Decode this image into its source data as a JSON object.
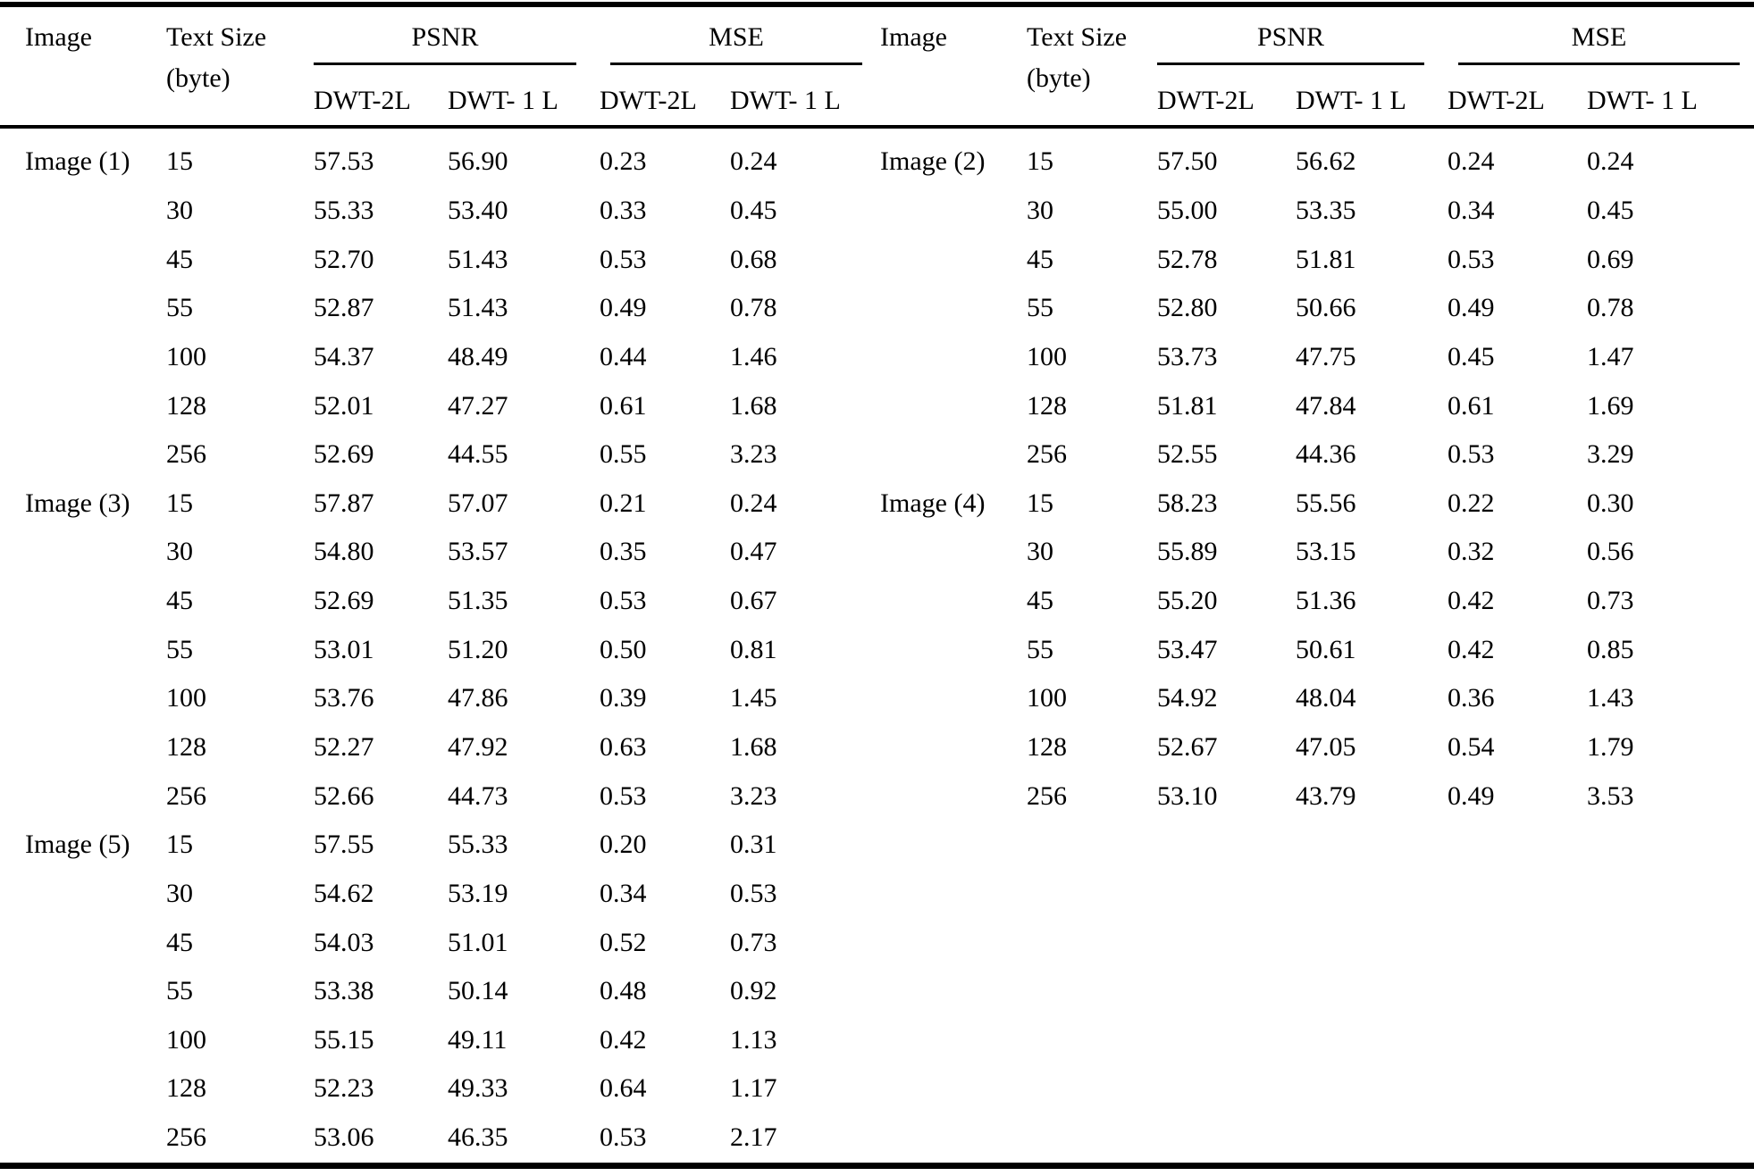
{
  "header": {
    "image": "Image",
    "text_size_line1": "Text Size",
    "text_size_line2": "(byte)",
    "psnr": "PSNR",
    "mse": "MSE",
    "dwt2l": "DWT-2L",
    "dwt1l": "DWT- 1 L"
  },
  "table": {
    "columns": [
      "Image",
      "Text Size (byte)",
      "PSNR DWT-2L",
      "PSNR DWT-1L",
      "MSE DWT-2L",
      "MSE DWT-1L"
    ],
    "sections": [
      {
        "groups": [
          {
            "image": "Image (1)",
            "rows": [
              [
                "15",
                "57.53",
                "56.90",
                "0.23",
                "0.24"
              ],
              [
                "30",
                "55.33",
                "53.40",
                "0.33",
                "0.45"
              ],
              [
                "45",
                "52.70",
                "51.43",
                "0.53",
                "0.68"
              ],
              [
                "55",
                "52.87",
                "51.43",
                "0.49",
                "0.78"
              ],
              [
                "100",
                "54.37",
                "48.49",
                "0.44",
                "1.46"
              ],
              [
                "128",
                "52.01",
                "47.27",
                "0.61",
                "1.68"
              ],
              [
                "256",
                "52.69",
                "44.55",
                "0.55",
                "3.23"
              ]
            ]
          },
          {
            "image": "Image (3)",
            "rows": [
              [
                "15",
                "57.87",
                "57.07",
                "0.21",
                "0.24"
              ],
              [
                "30",
                "54.80",
                "53.57",
                "0.35",
                "0.47"
              ],
              [
                "45",
                "52.69",
                "51.35",
                "0.53",
                "0.67"
              ],
              [
                "55",
                "53.01",
                "51.20",
                "0.50",
                "0.81"
              ],
              [
                "100",
                "53.76",
                "47.86",
                "0.39",
                "1.45"
              ],
              [
                "128",
                "52.27",
                "47.92",
                "0.63",
                "1.68"
              ],
              [
                "256",
                "52.66",
                "44.73",
                "0.53",
                "3.23"
              ]
            ]
          },
          {
            "image": "Image (5)",
            "rows": [
              [
                "15",
                "57.55",
                "55.33",
                "0.20",
                "0.31"
              ],
              [
                "30",
                "54.62",
                "53.19",
                "0.34",
                "0.53"
              ],
              [
                "45",
                "54.03",
                "51.01",
                "0.52",
                "0.73"
              ],
              [
                "55",
                "53.38",
                "50.14",
                "0.48",
                "0.92"
              ],
              [
                "100",
                "55.15",
                "49.11",
                "0.42",
                "1.13"
              ],
              [
                "128",
                "52.23",
                "49.33",
                "0.64",
                "1.17"
              ],
              [
                "256",
                "53.06",
                "46.35",
                "0.53",
                "2.17"
              ]
            ]
          }
        ]
      },
      {
        "groups": [
          {
            "image": "Image (2)",
            "rows": [
              [
                "15",
                "57.50",
                "56.62",
                "0.24",
                "0.24"
              ],
              [
                "30",
                "55.00",
                "53.35",
                "0.34",
                "0.45"
              ],
              [
                "45",
                "52.78",
                "51.81",
                "0.53",
                "0.69"
              ],
              [
                "55",
                "52.80",
                "50.66",
                "0.49",
                "0.78"
              ],
              [
                "100",
                "53.73",
                "47.75",
                "0.45",
                "1.47"
              ],
              [
                "128",
                "51.81",
                "47.84",
                "0.61",
                "1.69"
              ],
              [
                "256",
                "52.55",
                "44.36",
                "0.53",
                "3.29"
              ]
            ]
          },
          {
            "image": "Image (4)",
            "rows": [
              [
                "15",
                "58.23",
                "55.56",
                "0.22",
                "0.30"
              ],
              [
                "30",
                "55.89",
                "53.15",
                "0.32",
                "0.56"
              ],
              [
                "45",
                "55.20",
                "51.36",
                "0.42",
                "0.73"
              ],
              [
                "55",
                "53.47",
                "50.61",
                "0.42",
                "0.85"
              ],
              [
                "100",
                "54.92",
                "48.04",
                "0.36",
                "1.43"
              ],
              [
                "128",
                "52.67",
                "47.05",
                "0.54",
                "1.79"
              ],
              [
                "256",
                "53.10",
                "43.79",
                "0.49",
                "3.53"
              ]
            ]
          }
        ]
      }
    ]
  }
}
